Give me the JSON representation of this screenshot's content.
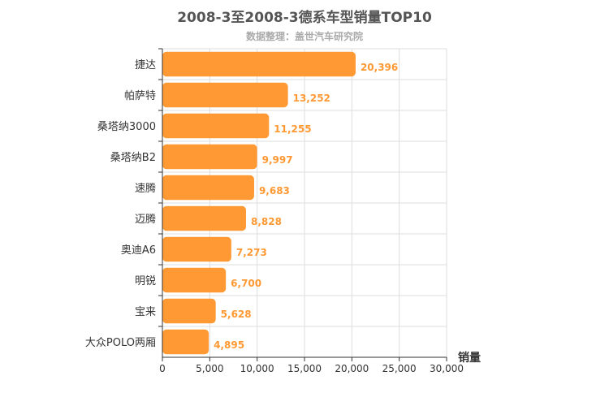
{
  "chart_data": {
    "type": "bar",
    "orientation": "horizontal",
    "title": "2008-3至2008-3德系车型销量TOP10",
    "subtitle": "数据整理：盖世汽车研究院",
    "categories": [
      "捷达",
      "帕萨特",
      "桑塔纳3000",
      "桑塔纳B2",
      "速腾",
      "迈腾",
      "奥迪A6",
      "明锐",
      "宝来",
      "大众POLO两厢"
    ],
    "values": [
      20396,
      13252,
      11255,
      9997,
      9683,
      8828,
      7273,
      6700,
      5628,
      4895
    ],
    "value_labels": [
      "20,396",
      "13,252",
      "11,255",
      "9,997",
      "9,683",
      "8,828",
      "7,273",
      "6,700",
      "5,628",
      "4,895"
    ],
    "xlabel": "销量",
    "ylabel": "",
    "xlim": [
      0,
      30000
    ],
    "xticks": [
      0,
      5000,
      10000,
      15000,
      20000,
      25000,
      30000
    ],
    "xtick_labels": [
      "0",
      "5,000",
      "10,000",
      "15,000",
      "20,000",
      "25,000",
      "30,000"
    ],
    "grid": true,
    "colors": {
      "bar": "#ff9933",
      "label": "#ff9933",
      "grid": "#dddddd",
      "axis": "#333333"
    }
  }
}
